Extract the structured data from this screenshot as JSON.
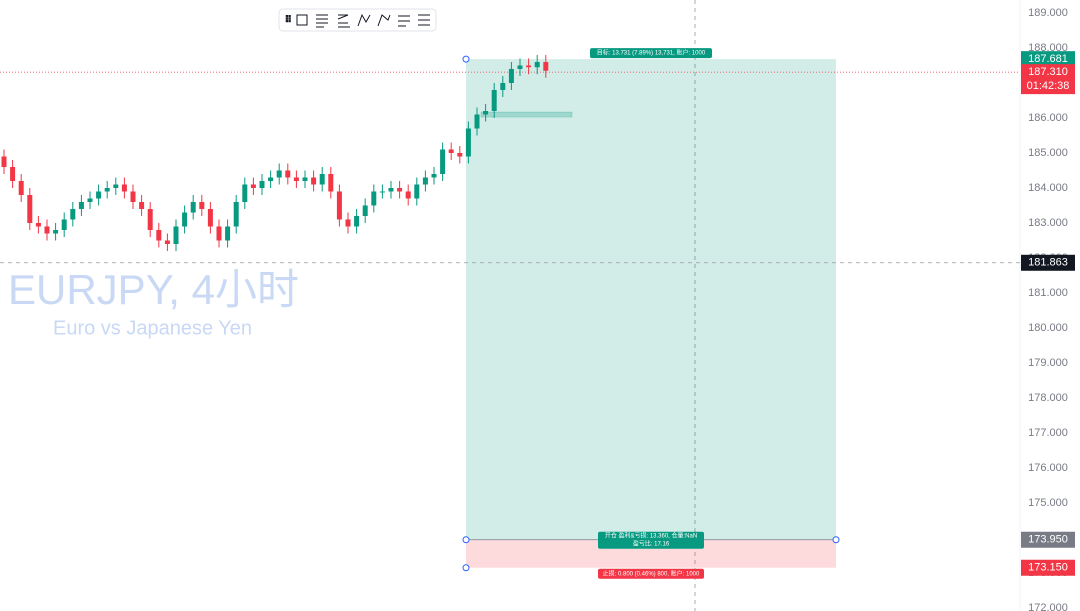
{
  "chart_data": {
    "type": "candlestick",
    "title": "EURJPY, 4小时",
    "subtitle": "Euro vs Japanese Yen",
    "up_color": "#089981",
    "down_color": "#f23645",
    "grid": false,
    "ylim": [
      171.914,
      189.371
    ],
    "yticks": [
      {
        "value": 189,
        "label": "189.000"
      },
      {
        "value": 188,
        "label": "188.000"
      },
      {
        "value": 187,
        "label": "187.000"
      },
      {
        "value": 186,
        "label": "186.000"
      },
      {
        "value": 185,
        "label": "185.000"
      },
      {
        "value": 184,
        "label": "184.000"
      },
      {
        "value": 183,
        "label": "183.000"
      },
      {
        "value": 182,
        "label": "182.000"
      },
      {
        "value": 181,
        "label": "181.000"
      },
      {
        "value": 180,
        "label": "180.000"
      },
      {
        "value": 179,
        "label": "179.000"
      },
      {
        "value": 178,
        "label": "178.000"
      },
      {
        "value": 177,
        "label": "177.000"
      },
      {
        "value": 176,
        "label": "176.000"
      },
      {
        "value": 175,
        "label": "175.000"
      },
      {
        "value": 174,
        "label": "174.000"
      },
      {
        "value": 173,
        "label": "173.000"
      },
      {
        "value": 172,
        "label": "172.000"
      }
    ],
    "categories": [
      null,
      null,
      null,
      null,
      null,
      null,
      null,
      null,
      null,
      null,
      null,
      null,
      null,
      null,
      null,
      null,
      null,
      null,
      null,
      null,
      null,
      null,
      null,
      null,
      null,
      null,
      null,
      null,
      null,
      null,
      null,
      null,
      null,
      null,
      null,
      null,
      null,
      null,
      null,
      null,
      null,
      null,
      null,
      null,
      null,
      null,
      null,
      null,
      null,
      null,
      null,
      null,
      null,
      null,
      null,
      null,
      null,
      null,
      null,
      null,
      null,
      null,
      null,
      null
    ],
    "open": [
      184.9,
      184.6,
      184.2,
      183.8,
      183.0,
      182.9,
      182.7,
      182.8,
      183.1,
      183.4,
      183.6,
      183.7,
      183.9,
      184.0,
      184.1,
      183.9,
      183.6,
      183.4,
      182.8,
      182.5,
      182.4,
      182.9,
      183.3,
      183.6,
      183.4,
      182.9,
      182.5,
      182.9,
      183.6,
      184.1,
      184.0,
      184.2,
      184.3,
      184.5,
      184.3,
      184.2,
      184.3,
      184.1,
      184.4,
      183.9,
      183.1,
      182.9,
      183.2,
      183.5,
      183.9,
      183.9,
      184.0,
      183.9,
      183.7,
      184.1,
      184.3,
      184.4,
      185.1,
      185.0,
      184.9,
      185.7,
      186.1,
      186.2,
      186.8,
      187.0,
      187.4,
      187.5,
      187.45,
      187.6
    ],
    "high": [
      185.1,
      184.8,
      184.4,
      184.0,
      183.2,
      183.1,
      183.0,
      183.3,
      183.6,
      183.8,
      183.9,
      184.1,
      184.2,
      184.3,
      184.3,
      184.1,
      183.8,
      183.6,
      183.0,
      182.7,
      183.1,
      183.5,
      183.8,
      183.8,
      183.6,
      183.1,
      183.1,
      183.8,
      184.3,
      184.3,
      184.4,
      184.5,
      184.7,
      184.7,
      184.5,
      184.5,
      184.5,
      184.6,
      184.6,
      184.1,
      183.3,
      183.4,
      183.7,
      184.1,
      184.1,
      184.2,
      184.2,
      184.1,
      184.3,
      184.5,
      184.6,
      185.3,
      185.3,
      185.2,
      185.9,
      186.3,
      186.4,
      187.0,
      187.2,
      187.6,
      187.7,
      187.7,
      187.8,
      187.8
    ],
    "low": [
      184.4,
      184.0,
      183.6,
      182.8,
      182.7,
      182.5,
      182.5,
      182.6,
      182.9,
      183.2,
      183.4,
      183.5,
      183.7,
      183.8,
      183.7,
      183.4,
      183.2,
      182.6,
      182.3,
      182.2,
      182.2,
      182.7,
      183.1,
      183.2,
      182.7,
      182.3,
      182.3,
      182.7,
      183.4,
      183.8,
      183.8,
      184.0,
      184.1,
      184.1,
      184.0,
      184.0,
      183.9,
      183.9,
      183.7,
      182.9,
      182.7,
      182.7,
      183.0,
      183.3,
      183.7,
      183.7,
      183.7,
      183.5,
      183.5,
      183.9,
      184.1,
      184.2,
      184.8,
      184.7,
      184.7,
      185.5,
      185.9,
      186.0,
      186.6,
      186.8,
      187.2,
      187.25,
      187.25,
      187.15
    ],
    "close": [
      184.6,
      184.2,
      183.8,
      183.0,
      182.9,
      182.7,
      182.8,
      183.1,
      183.4,
      183.6,
      183.7,
      183.9,
      184.0,
      184.1,
      183.9,
      183.6,
      183.4,
      182.8,
      182.5,
      182.4,
      182.9,
      183.3,
      183.6,
      183.4,
      182.9,
      182.5,
      182.9,
      183.6,
      184.1,
      184.0,
      184.2,
      184.3,
      184.5,
      184.3,
      184.2,
      184.3,
      184.1,
      184.4,
      183.9,
      183.1,
      182.9,
      183.2,
      183.5,
      183.9,
      183.9,
      184.0,
      183.9,
      183.7,
      184.1,
      184.3,
      184.4,
      185.1,
      185.0,
      184.9,
      185.7,
      186.1,
      186.2,
      186.8,
      187.0,
      187.4,
      187.5,
      187.45,
      187.6,
      187.35
    ],
    "last_price": {
      "value": 187.31,
      "label": "187.310",
      "countdown": "01:42:38"
    },
    "crosshair": {
      "value": 181.863,
      "label": "181.863"
    },
    "position": {
      "target": {
        "value": 187.681,
        "label": "187.681"
      },
      "entry": {
        "value": 173.95,
        "label": "173.950"
      },
      "stop": {
        "value": 173.15,
        "label": "173.150"
      },
      "target_text": "目标: 13.731 (7.89%) 13,731, 账户: 1000",
      "entry_text": "开仓 盈利&亏损: 13.360, 仓量:NaN",
      "ratio_text": "盈亏比: 17.16",
      "stop_text": "止损: 0.800 (0.46%) 800, 账户: 1000"
    }
  }
}
